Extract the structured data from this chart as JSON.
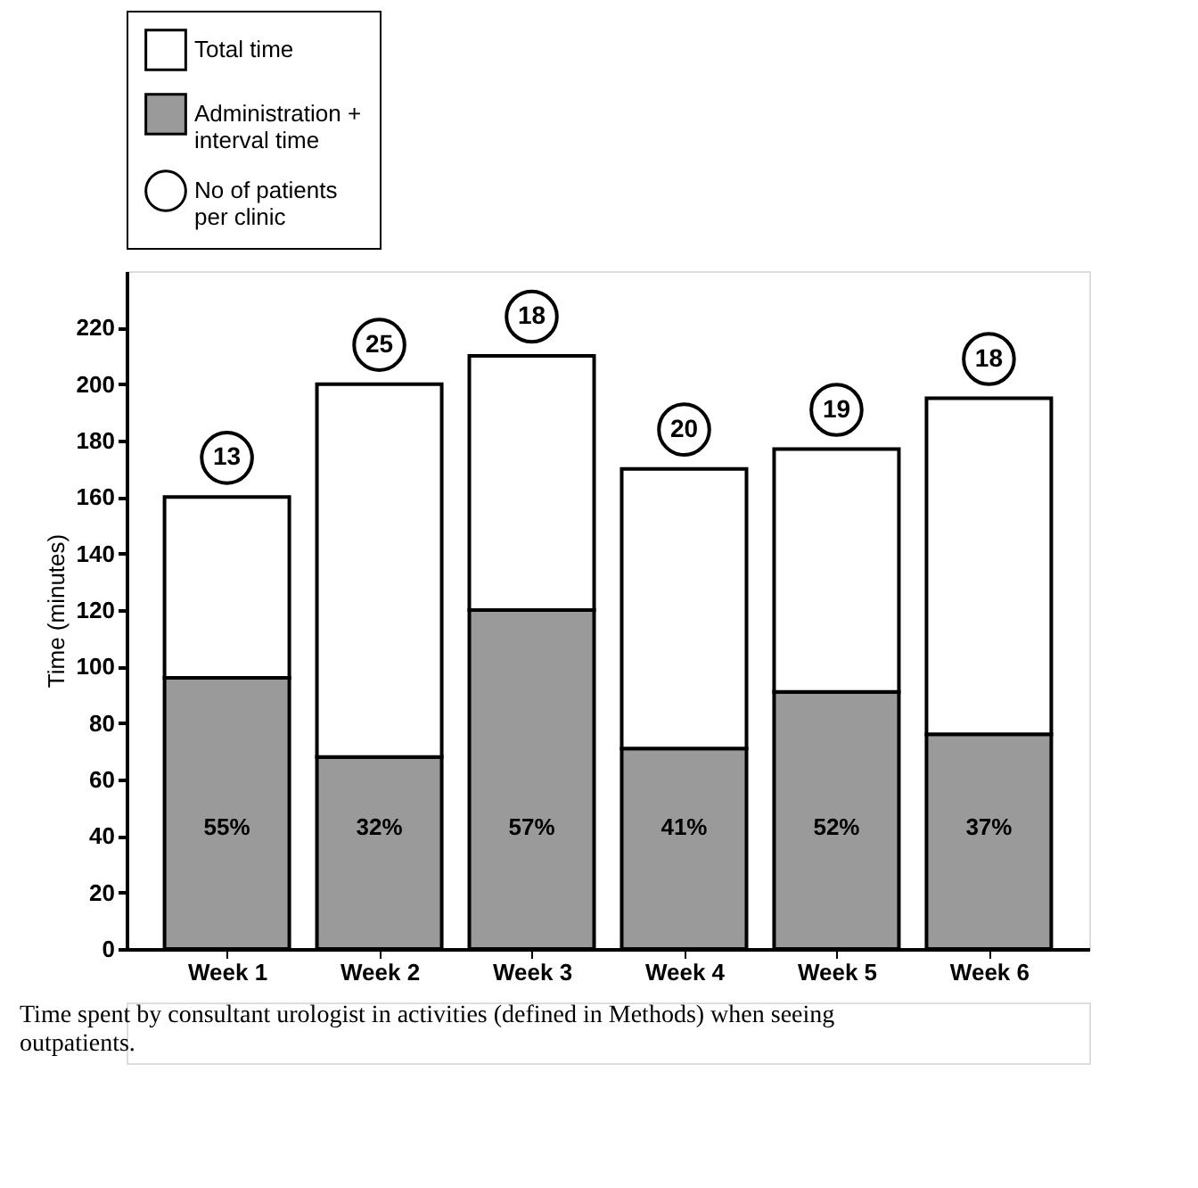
{
  "chart_data": {
    "type": "bar",
    "stacked": true,
    "ylabel": "Time (minutes)",
    "categories": [
      "Week 1",
      "Week 2",
      "Week 3",
      "Week 4",
      "Week 5",
      "Week 6"
    ],
    "series": [
      {
        "name": "Administration + interval time",
        "color": "#9a9a9a",
        "values": [
          96,
          68,
          120,
          71,
          91,
          76
        ]
      },
      {
        "name": "Total time",
        "color": "#ffffff",
        "values": [
          64,
          132,
          90,
          99,
          86,
          119
        ]
      }
    ],
    "ylim": [
      0,
      240
    ],
    "yticks": [
      0,
      20,
      40,
      60,
      80,
      100,
      120,
      140,
      160,
      180,
      200,
      220
    ],
    "grid": false,
    "legend": "top",
    "annotations": [
      {
        "text": "13",
        "x": "Week 1",
        "y": 160
      },
      {
        "text": "25",
        "x": "Week 2",
        "y": 200
      },
      {
        "text": "18",
        "x": "Week 3",
        "y": 210
      },
      {
        "text": "20",
        "x": "Week 4",
        "y": 170
      },
      {
        "text": "19",
        "x": "Week 5",
        "y": 177
      },
      {
        "text": "18",
        "x": "Week 6",
        "y": 195
      },
      "55%",
      "32%",
      "57%",
      "41%",
      "52%",
      "37%",
      "No of patients per clinic",
      "Time spent by consultant urologist in activities (defined in Methods) when seeing outpatients."
    ]
  }
}
